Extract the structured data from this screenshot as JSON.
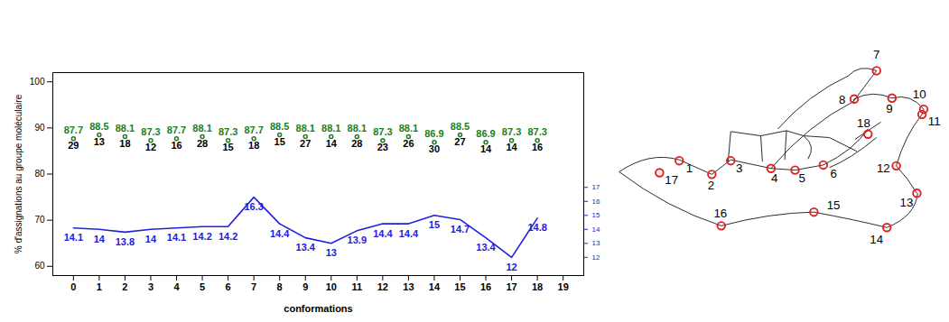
{
  "chart_data": {
    "type": "line",
    "x_label": "conformations",
    "y_label": "% d'assignations au groupe moléculaire",
    "x": [
      0,
      1,
      2,
      3,
      4,
      5,
      6,
      7,
      8,
      9,
      10,
      11,
      12,
      13,
      14,
      15,
      16,
      17,
      18
    ],
    "xlim": [
      -0.8,
      19.8
    ],
    "xticks": [
      0,
      1,
      2,
      3,
      4,
      5,
      6,
      7,
      8,
      9,
      10,
      11,
      12,
      13,
      14,
      15,
      16,
      17,
      18,
      19
    ],
    "ylim": [
      58,
      102
    ],
    "yticks": [
      60,
      70,
      80,
      90,
      100
    ],
    "y2lim": [
      10.7,
      25.2
    ],
    "y2ticks": [
      12,
      13,
      14,
      15,
      16,
      17
    ],
    "data_labels": true,
    "series": [
      {
        "type": "scatter",
        "color": "#1a7f1a",
        "marker": "circle",
        "values": [
          87.7,
          88.5,
          88.1,
          87.3,
          87.7,
          88.1,
          87.3,
          87.7,
          88.5,
          88.1,
          88.1,
          88.1,
          87.3,
          88.1,
          86.9,
          88.5,
          86.9,
          87.3,
          87.3
        ],
        "counts": [
          29,
          13,
          18,
          12,
          16,
          28,
          15,
          18,
          15,
          27,
          14,
          28,
          23,
          26,
          30,
          27,
          14,
          14,
          16
        ]
      },
      {
        "type": "line",
        "axis": "y2",
        "color": "#2020e0",
        "line_style": "solid",
        "values": [
          14.1,
          14,
          13.8,
          14,
          14.1,
          14.2,
          14.2,
          16.3,
          14.4,
          13.4,
          13,
          13.9,
          14.4,
          14.4,
          15,
          14.7,
          13.4,
          12,
          14.8
        ]
      }
    ]
  },
  "diagram": {
    "type": "landmarks",
    "labels": [
      "1",
      "2",
      "3",
      "4",
      "5",
      "6",
      "7",
      "8",
      "9",
      "10",
      "11",
      "12",
      "13",
      "14",
      "15",
      "16",
      "17",
      "18"
    ]
  }
}
